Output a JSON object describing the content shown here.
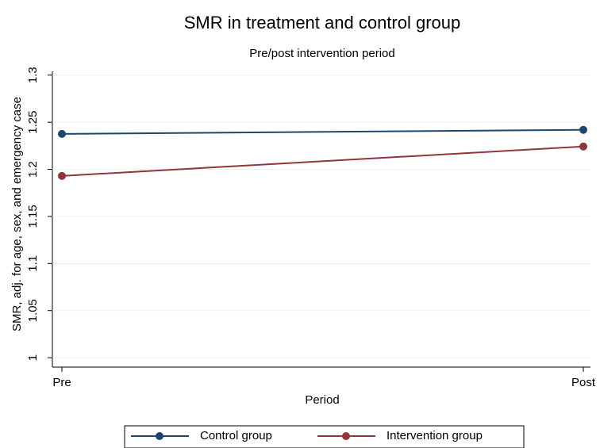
{
  "chart_data": {
    "type": "line",
    "title": "SMR in treatment and control group",
    "subtitle": "Pre/post intervention period",
    "x_label": "Period",
    "y_label": "SMR, adj. for age, sex, and emergency case",
    "categories": [
      "Pre",
      "Post"
    ],
    "series": [
      {
        "name": "Control group",
        "color": "#1a476f",
        "values": [
          1.2376,
          1.2419
        ]
      },
      {
        "name": "Intervention group",
        "color": "#90353b",
        "values": [
          1.193,
          1.2242
        ]
      }
    ],
    "ylim": [
      0.99,
      1.304
    ],
    "yticks": [
      1,
      1.05,
      1.1,
      1.15,
      1.2,
      1.25,
      1.3
    ],
    "grid": true,
    "legend": "bottom"
  }
}
